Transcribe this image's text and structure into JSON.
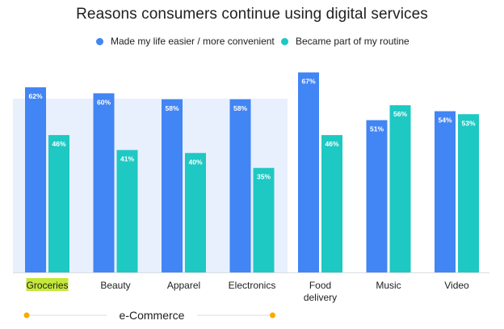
{
  "chart_data": {
    "type": "bar",
    "title": "Reasons consumers continue using digital services",
    "categories": [
      "Groceries",
      "Beauty",
      "Apparel",
      "Electronics",
      "Food delivery",
      "Music",
      "Video"
    ],
    "category_display": [
      [
        "Groceries"
      ],
      [
        "Beauty"
      ],
      [
        "Apparel"
      ],
      [
        "Electronics"
      ],
      [
        "Food",
        "delivery"
      ],
      [
        "Music"
      ],
      [
        "Video"
      ]
    ],
    "series": [
      {
        "name": "Made my life easier / more convenient",
        "color": "#4285f4",
        "values": [
          62,
          60,
          58,
          58,
          67,
          51,
          54
        ]
      },
      {
        "name": "Became part of my routine",
        "color": "#1ec8c3",
        "values": [
          46,
          41,
          40,
          35,
          46,
          56,
          53
        ]
      }
    ],
    "value_suffix": "%",
    "ylim": [
      0,
      75
    ],
    "xlabel": "",
    "ylabel": "",
    "highlighted_category": "Groceries",
    "highlight_color": "#c6e83a",
    "group": {
      "label": "e-Commerce",
      "categories": [
        "Groceries",
        "Beauty",
        "Apparel",
        "Electronics"
      ],
      "background": "#e8f0fe",
      "marker_color": "#f9ab00"
    }
  }
}
